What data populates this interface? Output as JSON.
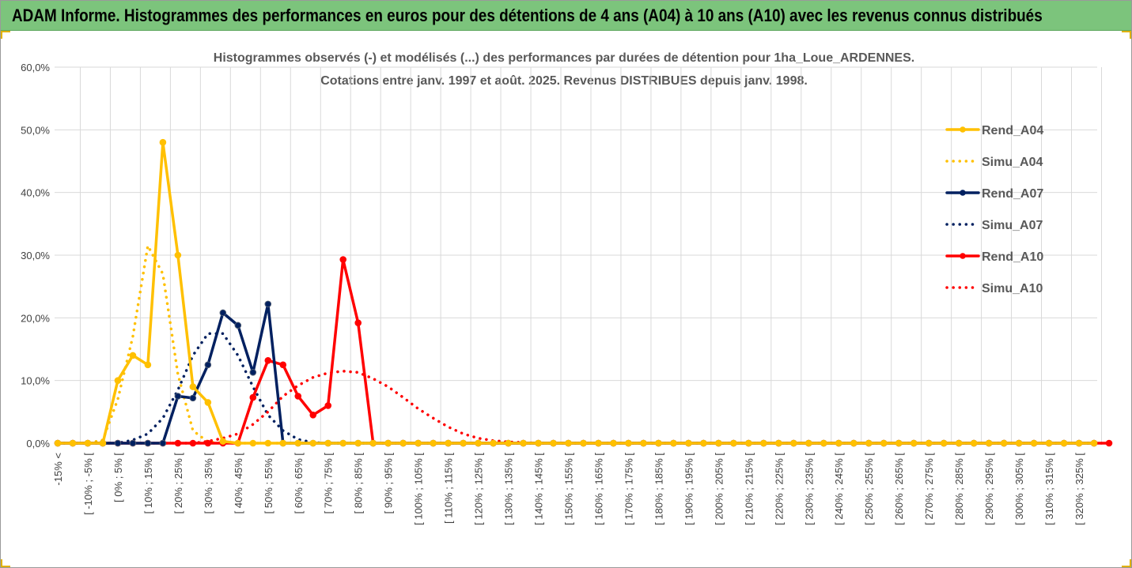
{
  "banner": {
    "title": "ADAM Informe. Histogrammes des performances en euros pour des détentions de 4 ans (A04) à 10 ans (A10) avec les revenus connus distribués"
  },
  "chart_data": {
    "type": "line",
    "title": [
      "Histogrammes observés (-) et modélisés (...) des performances par durées de détention pour 1ha_Loue_ARDENNES.",
      "Cotations entre janv. 1997 et août. 2025. Revenus DISTRIBUES depuis janv. 1998."
    ],
    "ylim": [
      0,
      60
    ],
    "yticks": [
      "0,0%",
      "10,0%",
      "20,0%",
      "30,0%",
      "40,0%",
      "50,0%",
      "60,0%"
    ],
    "grid": true,
    "legend_position": "top-right",
    "x_labels": [
      "-15% <",
      "[ -10% ; -5% [",
      "[ 0% ; 5% [",
      "[ 10% ; 15% [",
      "[ 20% ; 25% [",
      "[ 30% ; 35% [",
      "[ 40% ; 45% [",
      "[ 50% ; 55% [",
      "[ 60% ; 65% [",
      "[ 70% ; 75% [",
      "[ 80% ; 85% [",
      "[ 90% ; 95% [",
      "[ 100% ; 105% [",
      "[ 110% ; 115% [",
      "[ 120% ; 125% [",
      "[ 130% ; 135% [",
      "[ 140% ; 145% [",
      "[ 150% ; 155% [",
      "[ 160% ; 165% [",
      "[ 170% ; 175% [",
      "[ 180% ; 185% [",
      "[ 190% ; 195% [",
      "[ 200% ; 205% [",
      "[ 210% ; 215% [",
      "[ 220% ; 225% [",
      "[ 230% ; 235% [",
      "[ 240% ; 245% [",
      "[ 250% ; 255% [",
      "[ 260% ; 265% [",
      "[ 270% ; 275% [",
      "[ 280% ; 285% [",
      "[ 290% ; 295% [",
      "[ 300% ; 305% [",
      "[ 310% ; 315% [",
      "[ 320% ; 325% ["
    ],
    "series": [
      {
        "name": "Rend_A04",
        "color": "#ffc000",
        "style": "solid",
        "markers": true,
        "values": [
          0,
          0,
          0,
          0,
          10,
          14,
          12.5,
          48,
          30,
          9,
          6.5,
          0.3,
          0,
          0,
          0,
          0
        ]
      },
      {
        "name": "Simu_A04",
        "color": "#ffc000",
        "style": "dotted",
        "markers": false,
        "values": [
          0,
          0,
          0,
          0.5,
          7,
          17,
          31.5,
          27,
          11,
          2,
          0.2,
          0,
          0,
          0,
          0,
          0
        ]
      },
      {
        "name": "Rend_A07",
        "color": "#002060",
        "style": "solid",
        "markers": true,
        "values": [
          0,
          0,
          0,
          0,
          0,
          0,
          0,
          0,
          7.5,
          7.2,
          12.5,
          20.8,
          18.8,
          11.3,
          22.2,
          0,
          0,
          0,
          0,
          0,
          0
        ]
      },
      {
        "name": "Simu_A07",
        "color": "#002060",
        "style": "dotted",
        "markers": false,
        "values": [
          0,
          0,
          0,
          0,
          0,
          0.5,
          1.5,
          4,
          8.5,
          14,
          17.5,
          17.5,
          14,
          9,
          4.5,
          2,
          0.6,
          0.1,
          0,
          0,
          0
        ]
      },
      {
        "name": "Rend_A10",
        "color": "#ff0000",
        "style": "solid",
        "markers": true,
        "values": [
          0,
          0,
          0,
          0,
          0,
          0,
          0,
          0,
          0,
          0,
          0,
          0,
          0,
          7.3,
          13.2,
          12.5,
          7.5,
          4.5,
          6,
          29.3,
          19.2,
          0,
          0,
          0,
          0,
          0,
          0,
          0,
          0,
          0,
          0,
          0,
          0,
          0,
          0,
          0,
          0,
          0,
          0,
          0,
          0,
          0,
          0,
          0,
          0,
          0,
          0,
          0,
          0,
          0,
          0,
          0,
          0,
          0,
          0,
          0,
          0,
          0,
          0,
          0,
          0,
          0,
          0,
          0,
          0,
          0,
          0,
          0,
          0,
          0,
          0
        ]
      },
      {
        "name": "Simu_A10",
        "color": "#ff0000",
        "style": "dotted",
        "markers": false,
        "values": [
          0,
          0,
          0,
          0,
          0,
          0,
          0,
          0,
          0,
          0,
          0.3,
          0.8,
          1.5,
          3,
          5,
          7.5,
          9.2,
          10.5,
          11.2,
          11.5,
          11.3,
          10.3,
          9,
          7.3,
          5.5,
          4,
          2.6,
          1.5,
          0.8,
          0.4,
          0.2,
          0.1,
          0,
          0,
          0,
          0,
          0,
          0,
          0,
          0,
          0,
          0,
          0,
          0,
          0,
          0,
          0,
          0,
          0,
          0,
          0,
          0,
          0,
          0,
          0,
          0,
          0,
          0,
          0,
          0,
          0,
          0,
          0,
          0,
          0,
          0,
          0,
          0,
          0,
          0,
          0
        ]
      }
    ]
  }
}
